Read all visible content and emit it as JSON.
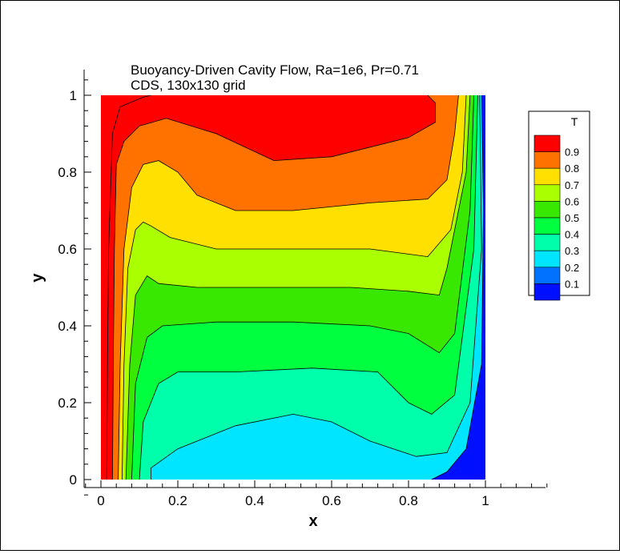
{
  "chart_data": {
    "type": "contour",
    "title": "Buoyancy-Driven Cavity Flow, Ra=1e6, Pr=0.71",
    "subtitle": "CDS, 130x130 grid",
    "xlabel": "x",
    "ylabel": "y",
    "xlim": [
      -0.04,
      1.16
    ],
    "ylim": [
      -0.03,
      1.07
    ],
    "x_ticks": [
      "0",
      "0.2",
      "0.4",
      "0.6",
      "0.8",
      "1"
    ],
    "y_ticks": [
      "0",
      "0.2",
      "0.4",
      "0.6",
      "0.8",
      "1"
    ],
    "x_tick_values": [
      0,
      0.2,
      0.4,
      0.6,
      0.8,
      1
    ],
    "y_tick_values": [
      0,
      0.2,
      0.4,
      0.6,
      0.8,
      1
    ],
    "legend": {
      "title": "T",
      "placement": "right",
      "levels": [
        {
          "label": "0.9",
          "color": "#ff0000"
        },
        {
          "label": "0.8",
          "color": "#ff7200"
        },
        {
          "label": "0.7",
          "color": "#ffe000"
        },
        {
          "label": "0.6",
          "color": "#aaff00"
        },
        {
          "label": "0.5",
          "color": "#38e800"
        },
        {
          "label": "0.4",
          "color": "#00ff3f"
        },
        {
          "label": "0.3",
          "color": "#00ffaa"
        },
        {
          "label": "0.2",
          "color": "#00e5ff"
        },
        {
          "label": "0.1",
          "color": "#0072ff"
        },
        {
          "label": "",
          "color": "#0010ff"
        }
      ]
    },
    "isotherms": [
      {
        "level": 0.9,
        "points": [
          [
            0.015,
            0
          ],
          [
            0.017,
            0.3
          ],
          [
            0.02,
            0.6
          ],
          [
            0.03,
            0.9
          ],
          [
            0.05,
            0.97
          ],
          [
            0.11,
            0.995
          ],
          [
            0.13,
            1
          ]
        ]
      },
      {
        "level": 0.8,
        "points": [
          [
            0.03,
            0
          ],
          [
            0.032,
            0.3
          ],
          [
            0.035,
            0.6
          ],
          [
            0.04,
            0.82
          ],
          [
            0.06,
            0.88
          ],
          [
            0.1,
            0.92
          ],
          [
            0.17,
            0.94
          ],
          [
            0.3,
            0.9
          ],
          [
            0.45,
            0.83
          ],
          [
            0.6,
            0.84
          ],
          [
            0.8,
            0.89
          ],
          [
            0.87,
            0.93
          ],
          [
            0.87,
            0.98
          ],
          [
            0.85,
            1
          ]
        ]
      },
      {
        "level": 0.7,
        "points": [
          [
            0.045,
            0
          ],
          [
            0.05,
            0.3
          ],
          [
            0.06,
            0.6
          ],
          [
            0.08,
            0.76
          ],
          [
            0.11,
            0.82
          ],
          [
            0.15,
            0.83
          ],
          [
            0.2,
            0.8
          ],
          [
            0.25,
            0.74
          ],
          [
            0.35,
            0.7
          ],
          [
            0.5,
            0.7
          ],
          [
            0.7,
            0.72
          ],
          [
            0.85,
            0.73
          ],
          [
            0.9,
            0.78
          ],
          [
            0.92,
            0.9
          ],
          [
            0.93,
            1
          ]
        ]
      },
      {
        "level": 0.6,
        "points": [
          [
            0.055,
            0
          ],
          [
            0.06,
            0.3
          ],
          [
            0.07,
            0.55
          ],
          [
            0.09,
            0.65
          ],
          [
            0.11,
            0.67
          ],
          [
            0.13,
            0.66
          ],
          [
            0.18,
            0.63
          ],
          [
            0.3,
            0.6
          ],
          [
            0.5,
            0.6
          ],
          [
            0.7,
            0.6
          ],
          [
            0.85,
            0.58
          ],
          [
            0.91,
            0.65
          ],
          [
            0.94,
            0.8
          ],
          [
            0.95,
            1
          ]
        ]
      },
      {
        "level": 0.5,
        "points": [
          [
            0.065,
            0
          ],
          [
            0.075,
            0.3
          ],
          [
            0.09,
            0.48
          ],
          [
            0.12,
            0.53
          ],
          [
            0.15,
            0.51
          ],
          [
            0.25,
            0.5
          ],
          [
            0.45,
            0.5
          ],
          [
            0.65,
            0.5
          ],
          [
            0.8,
            0.49
          ],
          [
            0.88,
            0.48
          ],
          [
            0.9,
            0.55
          ],
          [
            0.95,
            0.8
          ],
          [
            0.96,
            1
          ]
        ]
      },
      {
        "level": 0.4,
        "points": [
          [
            0.08,
            0
          ],
          [
            0.09,
            0.25
          ],
          [
            0.12,
            0.37
          ],
          [
            0.16,
            0.4
          ],
          [
            0.3,
            0.41
          ],
          [
            0.5,
            0.41
          ],
          [
            0.7,
            0.4
          ],
          [
            0.8,
            0.38
          ],
          [
            0.88,
            0.33
          ],
          [
            0.92,
            0.38
          ],
          [
            0.96,
            0.7
          ],
          [
            0.97,
            1
          ]
        ]
      },
      {
        "level": 0.3,
        "points": [
          [
            0.1,
            0
          ],
          [
            0.11,
            0.15
          ],
          [
            0.15,
            0.25
          ],
          [
            0.2,
            0.28
          ],
          [
            0.35,
            0.28
          ],
          [
            0.55,
            0.29
          ],
          [
            0.72,
            0.28
          ],
          [
            0.8,
            0.2
          ],
          [
            0.86,
            0.17
          ],
          [
            0.92,
            0.22
          ],
          [
            0.97,
            0.6
          ],
          [
            0.98,
            1
          ]
        ]
      },
      {
        "level": 0.2,
        "points": [
          [
            0.13,
            0
          ],
          [
            0.13,
            0.03
          ],
          [
            0.2,
            0.08
          ],
          [
            0.35,
            0.14
          ],
          [
            0.5,
            0.17
          ],
          [
            0.6,
            0.15
          ],
          [
            0.7,
            0.1
          ],
          [
            0.82,
            0.06
          ],
          [
            0.9,
            0.07
          ],
          [
            0.96,
            0.2
          ],
          [
            0.99,
            0.6
          ],
          [
            0.985,
            1
          ]
        ]
      },
      {
        "level": 0.1,
        "points": [
          [
            0.86,
            0
          ],
          [
            0.9,
            0.02
          ],
          [
            0.95,
            0.08
          ],
          [
            0.99,
            0.3
          ],
          [
            0.995,
            0.7
          ],
          [
            0.99,
            1
          ]
        ]
      }
    ]
  }
}
